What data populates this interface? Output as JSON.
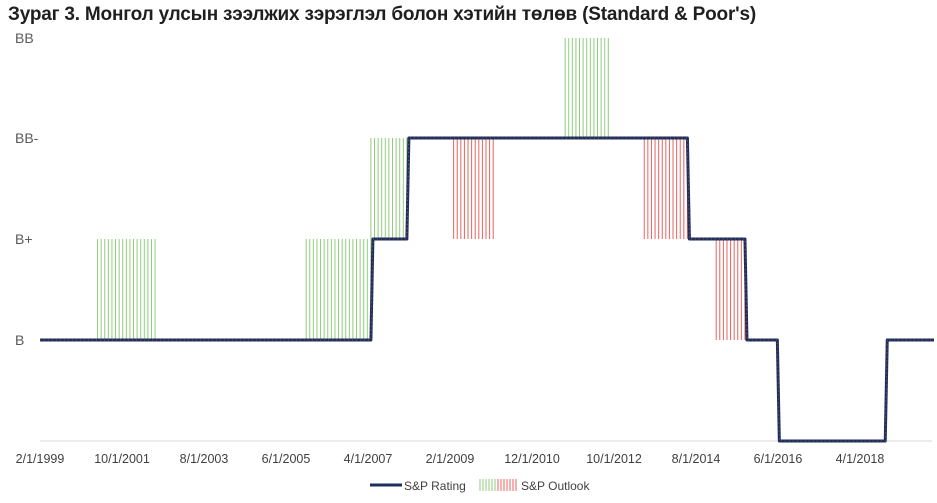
{
  "chart_data": {
    "type": "line",
    "title": "Зураг 3. Монгол улсын зээлжих зэрэглэл болон хэтийн төлөв (Standard & Poor's)",
    "y_categories": [
      "B-",
      "B",
      "B+",
      "BB-",
      "BB"
    ],
    "y_tick_labels": [
      "B",
      "B+",
      "BB-",
      "BB"
    ],
    "x_tick_labels": [
      "2/1/1999",
      "10/1/2001",
      "8/1/2003",
      "6/1/2005",
      "4/1/2007",
      "2/1/2009",
      "12/1/2010",
      "10/1/2012",
      "8/1/2014",
      "6/1/2016",
      "4/1/2018"
    ],
    "x_range": [
      "1999-04",
      "2019-12"
    ],
    "series": [
      {
        "name": "S&P Rating",
        "color": "#1f2f5c",
        "steps": [
          {
            "date": "1999-04",
            "rating": "B"
          },
          {
            "date": "2006-12",
            "rating": "B+"
          },
          {
            "date": "2007-10",
            "rating": "BB-"
          },
          {
            "date": "2014-04",
            "rating": "B+"
          },
          {
            "date": "2015-08",
            "rating": "B"
          },
          {
            "date": "2016-05",
            "rating": "B-"
          },
          {
            "date": "2018-11",
            "rating": "B"
          },
          {
            "date": "2019-12",
            "rating": "B"
          }
        ]
      },
      {
        "name": "S&P Outlook",
        "colors": {
          "positive": "#8fce7c",
          "negative": "#e8635f"
        },
        "periods": [
          {
            "start": "2000-08",
            "end": "2001-12",
            "outlook": "positive",
            "from": "B",
            "to": "B+"
          },
          {
            "start": "2005-06",
            "end": "2006-12",
            "outlook": "positive",
            "from": "B",
            "to": "B+"
          },
          {
            "start": "2006-12",
            "end": "2007-10",
            "outlook": "positive",
            "from": "B+",
            "to": "BB-"
          },
          {
            "start": "2008-11",
            "end": "2009-10",
            "outlook": "negative",
            "from": "B+",
            "to": "BB-"
          },
          {
            "start": "2011-06",
            "end": "2012-06",
            "outlook": "positive",
            "from": "BB-",
            "to": "BB"
          },
          {
            "start": "2013-04",
            "end": "2014-04",
            "outlook": "negative",
            "from": "B+",
            "to": "BB-"
          },
          {
            "start": "2014-12",
            "end": "2015-08",
            "outlook": "negative",
            "from": "B",
            "to": "B+"
          }
        ]
      }
    ],
    "legend": {
      "placement": "bottom-center",
      "items": [
        "S&P Rating",
        "S&P Outlook"
      ]
    },
    "grid": false
  }
}
